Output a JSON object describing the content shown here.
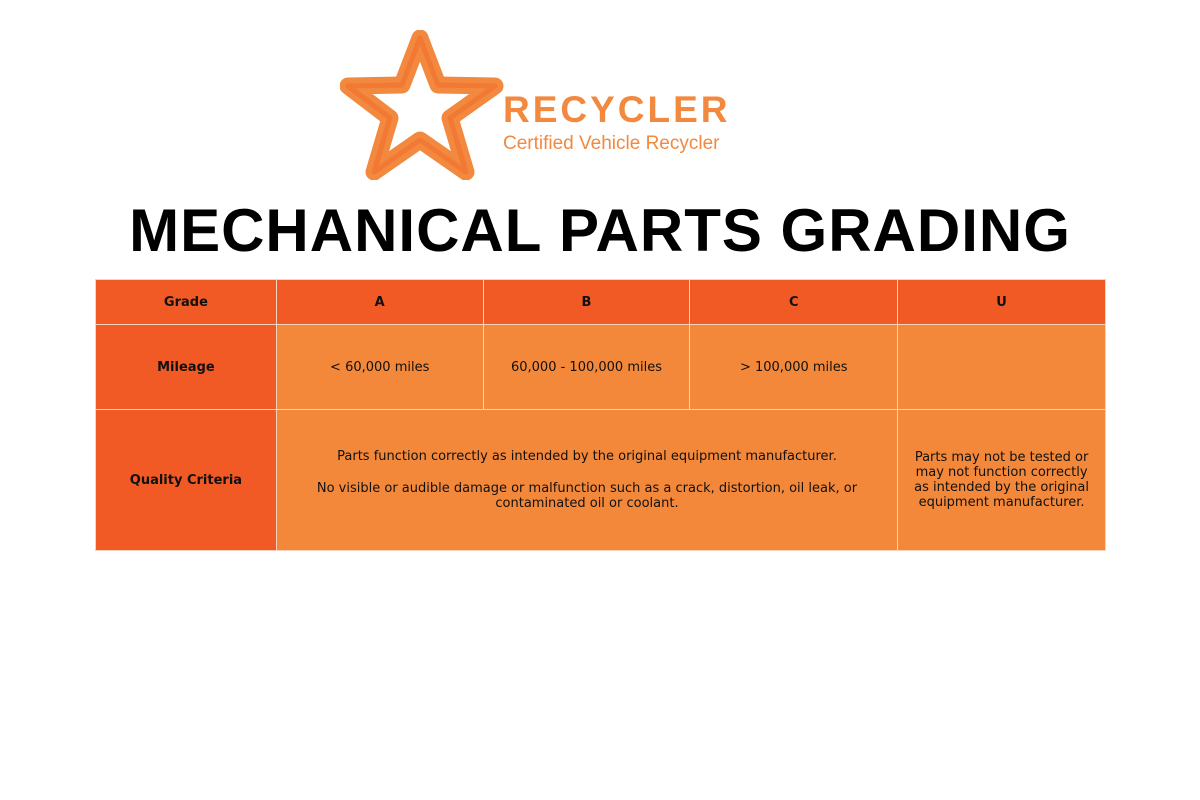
{
  "logo": {
    "brand": "RECYCLER",
    "tagline": "Certified Vehicle Recycler",
    "icon": "recycle-star-icon",
    "color": "#F3883F"
  },
  "title": "MECHANICAL PARTS GRADING",
  "colors": {
    "header": "#F15A24",
    "cell": "#F3883A"
  },
  "table": {
    "headers": [
      "Grade",
      "A",
      "B",
      "C",
      "U"
    ],
    "mileage": {
      "label": "Mileage",
      "values": [
        "< 60,000 miles",
        "60,000 - 100,000 miles",
        "> 100,000 miles",
        ""
      ]
    },
    "quality": {
      "label": "Quality Criteria",
      "abc_line1": "Parts function correctly as intended by the original equipment manufacturer.",
      "abc_line2": "No visible or audible damage or malfunction such as a crack, distortion, oil leak, or contaminated oil or coolant.",
      "u": "Parts may not be tested or may not function correctly as intended by the original equipment manufacturer."
    }
  }
}
